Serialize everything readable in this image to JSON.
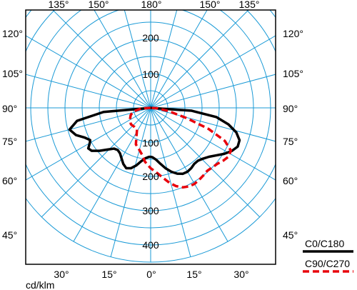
{
  "chart_data": {
    "type": "polar",
    "unit_label": "cd/klm",
    "radial_axis": {
      "max": 450,
      "ring_step": 50,
      "labels": [
        "100",
        "200",
        "300",
        "400"
      ]
    },
    "angle_labels": {
      "top": [
        "135°",
        "150°",
        "180°",
        "150°",
        "135°"
      ],
      "left": [
        "120°",
        "105°",
        "90°",
        "75°",
        "60°",
        "45°"
      ],
      "right": [
        "120°",
        "105°",
        "90°",
        "75°",
        "60°",
        "45°"
      ],
      "bottom": [
        "30°",
        "15°",
        "0°",
        "15°",
        "30°"
      ]
    },
    "grid": true,
    "legend_position": "bottom-right",
    "colors": {
      "grid": "#1a9ad6",
      "frame": "#000000",
      "c0": "#000000",
      "c90": "#e8000b"
    },
    "series": [
      {
        "name": "C0/C180",
        "style": "solid",
        "points": [
          [
            -90,
            0
          ],
          [
            -85,
            138
          ],
          [
            -80,
            218
          ],
          [
            -75,
            245
          ],
          [
            -70,
            232
          ],
          [
            -66,
            212
          ],
          [
            -62,
            200
          ],
          [
            -60,
            205
          ],
          [
            -57,
            217
          ],
          [
            -54,
            213
          ],
          [
            -50,
            195
          ],
          [
            -46,
            175
          ],
          [
            -42,
            160
          ],
          [
            -38,
            156
          ],
          [
            -34,
            160
          ],
          [
            -30,
            170
          ],
          [
            -26,
            182
          ],
          [
            -22,
            190
          ],
          [
            -18,
            185
          ],
          [
            -14,
            173
          ],
          [
            -10,
            158
          ],
          [
            -6,
            148
          ],
          [
            -2,
            143
          ],
          [
            0,
            143
          ],
          [
            2,
            144
          ],
          [
            6,
            152
          ],
          [
            10,
            166
          ],
          [
            14,
            182
          ],
          [
            18,
            196
          ],
          [
            22,
            207
          ],
          [
            26,
            214
          ],
          [
            30,
            215
          ],
          [
            34,
            212
          ],
          [
            38,
            207
          ],
          [
            42,
            207
          ],
          [
            46,
            213
          ],
          [
            50,
            222
          ],
          [
            54,
            236
          ],
          [
            58,
            253
          ],
          [
            62,
            268
          ],
          [
            66,
            278
          ],
          [
            70,
            276
          ],
          [
            74,
            260
          ],
          [
            78,
            232
          ],
          [
            82,
            194
          ],
          [
            86,
            120
          ],
          [
            90,
            0
          ]
        ]
      },
      {
        "name": "C90/C270",
        "style": "dashed",
        "points": [
          [
            -90,
            0
          ],
          [
            -86,
            28
          ],
          [
            -78,
            52
          ],
          [
            -70,
            62
          ],
          [
            -60,
            70
          ],
          [
            -50,
            75
          ],
          [
            -40,
            73
          ],
          [
            -32,
            75
          ],
          [
            -26,
            95
          ],
          [
            -22,
            115
          ],
          [
            -16,
            125
          ],
          [
            -10,
            140
          ],
          [
            -6,
            158
          ],
          [
            0,
            176
          ],
          [
            6,
            192
          ],
          [
            10,
            207
          ],
          [
            14,
            225
          ],
          [
            18,
            240
          ],
          [
            22,
            250
          ],
          [
            26,
            255
          ],
          [
            30,
            256
          ],
          [
            34,
            253
          ],
          [
            38,
            250
          ],
          [
            42,
            247
          ],
          [
            46,
            250
          ],
          [
            50,
            254
          ],
          [
            54,
            262
          ],
          [
            58,
            268
          ],
          [
            62,
            265
          ],
          [
            66,
            237
          ],
          [
            70,
            180
          ],
          [
            74,
            110
          ],
          [
            80,
            52
          ],
          [
            86,
            18
          ],
          [
            90,
            0
          ]
        ]
      }
    ]
  }
}
